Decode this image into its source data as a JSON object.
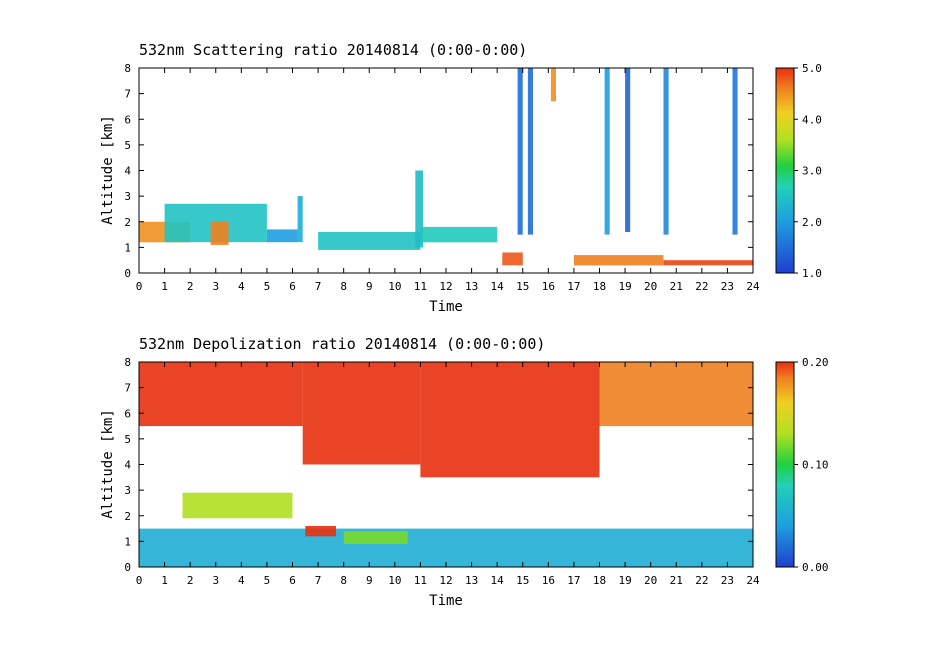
{
  "chart_data": [
    {
      "type": "heatmap",
      "title": "532nm Scattering ratio  20140814 (0:00-0:00)",
      "xlabel": "Time",
      "ylabel": "Altitude [km]",
      "xlim": [
        0,
        24
      ],
      "ylim": [
        0,
        8
      ],
      "x_ticks": [
        "0",
        "1",
        "2",
        "3",
        "4",
        "5",
        "6",
        "7",
        "8",
        "9",
        "10",
        "11",
        "12",
        "13",
        "14",
        "15",
        "16",
        "17",
        "18",
        "19",
        "20",
        "21",
        "22",
        "23",
        "24"
      ],
      "y_ticks": [
        "0",
        "1",
        "2",
        "3",
        "4",
        "5",
        "6",
        "7",
        "8"
      ],
      "colorbar": {
        "min": 1.0,
        "max": 5.0,
        "ticks": [
          "1.0",
          "2.0",
          "3.0",
          "4.0",
          "5.0"
        ]
      },
      "features": [
        {
          "x0": 0.0,
          "x1": 2.0,
          "y0": 1.2,
          "y1": 2.0,
          "value": 4.5
        },
        {
          "x0": 1.0,
          "x1": 5.0,
          "y0": 1.2,
          "y1": 2.7,
          "value": 2.5
        },
        {
          "x0": 2.8,
          "x1": 3.5,
          "y0": 1.1,
          "y1": 2.0,
          "value": 4.6
        },
        {
          "x0": 5.0,
          "x1": 6.2,
          "y0": 1.2,
          "y1": 1.7,
          "value": 2.0
        },
        {
          "x0": 6.2,
          "x1": 6.4,
          "y0": 1.2,
          "y1": 3.0,
          "value": 2.2
        },
        {
          "x0": 7.0,
          "x1": 11.0,
          "y0": 0.9,
          "y1": 1.6,
          "value": 2.5
        },
        {
          "x0": 10.8,
          "x1": 11.1,
          "y0": 1.0,
          "y1": 4.0,
          "value": 2.4
        },
        {
          "x0": 11.0,
          "x1": 14.0,
          "y0": 1.2,
          "y1": 1.8,
          "value": 2.6
        },
        {
          "x0": 14.2,
          "x1": 15.0,
          "y0": 0.3,
          "y1": 0.8,
          "value": 4.8
        },
        {
          "x0": 14.8,
          "x1": 15.0,
          "y0": 1.5,
          "y1": 8.0,
          "value": 1.5
        },
        {
          "x0": 15.2,
          "x1": 15.4,
          "y0": 1.5,
          "y1": 8.0,
          "value": 1.5
        },
        {
          "x0": 16.1,
          "x1": 16.3,
          "y0": 6.7,
          "y1": 8.0,
          "value": 4.5
        },
        {
          "x0": 17.0,
          "x1": 20.5,
          "y0": 0.3,
          "y1": 0.7,
          "value": 4.6
        },
        {
          "x0": 18.2,
          "x1": 18.4,
          "y0": 1.5,
          "y1": 8.0,
          "value": 2.0
        },
        {
          "x0": 19.0,
          "x1": 19.2,
          "y0": 1.6,
          "y1": 8.0,
          "value": 1.4
        },
        {
          "x0": 20.5,
          "x1": 20.7,
          "y0": 1.5,
          "y1": 8.0,
          "value": 1.8
        },
        {
          "x0": 20.5,
          "x1": 24.0,
          "y0": 0.3,
          "y1": 0.5,
          "value": 4.9
        },
        {
          "x0": 23.2,
          "x1": 23.4,
          "y0": 1.5,
          "y1": 8.0,
          "value": 1.6
        }
      ]
    },
    {
      "type": "heatmap",
      "title": "532nm Depolization ratio  20140814 (0:00-0:00)",
      "xlabel": "Time",
      "ylabel": "Altitude [km]",
      "xlim": [
        0,
        24
      ],
      "ylim": [
        0,
        8
      ],
      "x_ticks": [
        "0",
        "1",
        "2",
        "3",
        "4",
        "5",
        "6",
        "7",
        "8",
        "9",
        "10",
        "11",
        "12",
        "13",
        "14",
        "15",
        "16",
        "17",
        "18",
        "19",
        "20",
        "21",
        "22",
        "23",
        "24"
      ],
      "y_ticks": [
        "0",
        "1",
        "2",
        "3",
        "4",
        "5",
        "6",
        "7",
        "8"
      ],
      "colorbar": {
        "min": 0.0,
        "max": 0.2,
        "ticks": [
          "0.00",
          "0.10",
          "0.20"
        ]
      },
      "features": [
        {
          "x0": 0.0,
          "x1": 6.4,
          "y0": 5.5,
          "y1": 8.0,
          "value": 0.2
        },
        {
          "x0": 6.4,
          "x1": 11.0,
          "y0": 4.0,
          "y1": 8.0,
          "value": 0.2
        },
        {
          "x0": 11.0,
          "x1": 18.0,
          "y0": 3.5,
          "y1": 8.0,
          "value": 0.2
        },
        {
          "x0": 18.0,
          "x1": 24.0,
          "y0": 5.5,
          "y1": 8.0,
          "value": 0.18
        },
        {
          "x0": 1.7,
          "x1": 6.0,
          "y0": 1.9,
          "y1": 2.9,
          "value": 0.13
        },
        {
          "x0": 0.0,
          "x1": 24.0,
          "y0": 0.0,
          "y1": 1.5,
          "value": 0.06
        },
        {
          "x0": 6.5,
          "x1": 7.7,
          "y0": 1.2,
          "y1": 1.6,
          "value": 0.2
        },
        {
          "x0": 8.0,
          "x1": 10.5,
          "y0": 0.9,
          "y1": 1.4,
          "value": 0.12
        }
      ]
    }
  ]
}
